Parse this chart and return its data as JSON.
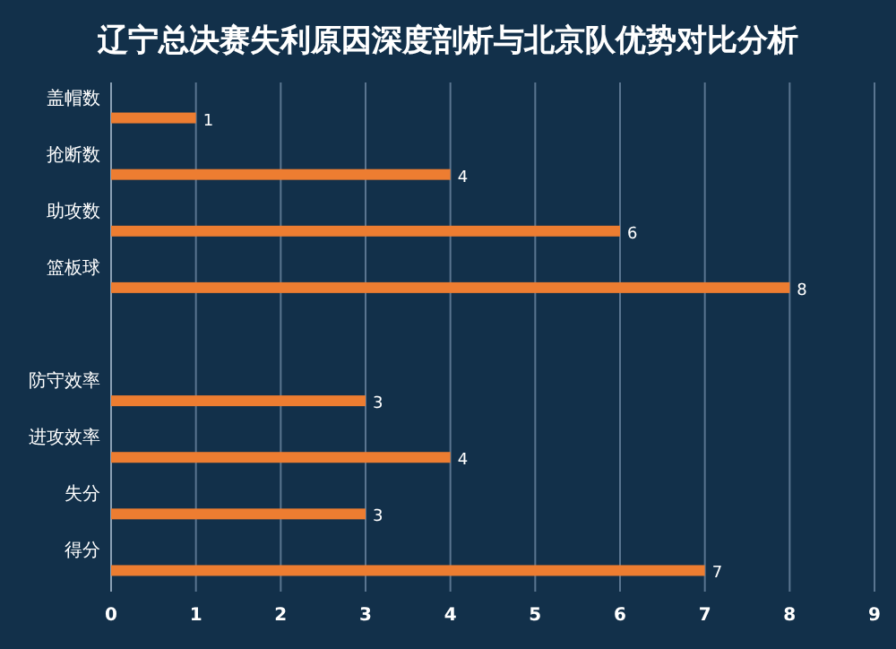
{
  "chart_data": {
    "type": "bar",
    "orientation": "horizontal",
    "title": "辽宁总决赛失利原因深度剖析与北京队优势对比分析",
    "categories": [
      "盖帽数",
      "抢断数",
      "助攻数",
      "篮板球",
      null,
      "防守效率",
      "进攻效率",
      "失分",
      "得分"
    ],
    "values": [
      1,
      4,
      6,
      8,
      null,
      3,
      4,
      3,
      7
    ],
    "color": "#ed7d31",
    "xlim": [
      0,
      9
    ],
    "xticks": [
      0,
      1,
      2,
      3,
      4,
      5,
      6,
      7,
      8,
      9
    ],
    "grid": "x",
    "data_labels": true
  }
}
